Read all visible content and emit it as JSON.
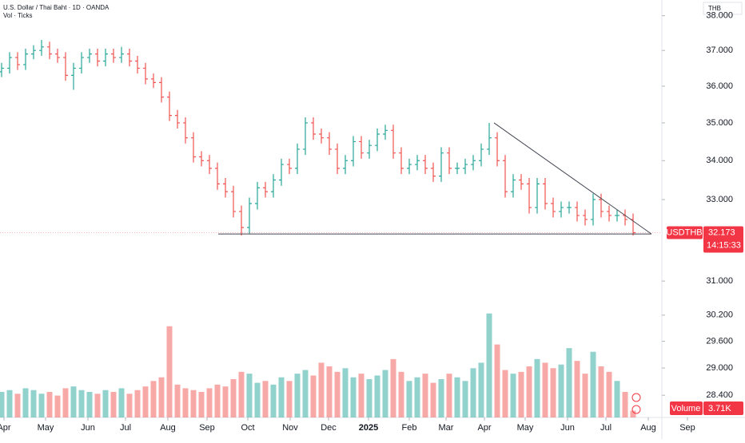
{
  "chart_data": {
    "type": "ohlc",
    "title": "U.S. Dollar / Thai Baht · 1D · OANDA",
    "subtitle": "Vol · Ticks",
    "currency": "THB",
    "log_scale": true,
    "grid": false,
    "up_color": "#26a69a",
    "down_color": "#ef5350",
    "xlim": [
      -0.2,
      82.6
    ],
    "xticks": [
      {
        "value": 0.3,
        "label": "Apr"
      },
      {
        "value": 5.5,
        "label": "May"
      },
      {
        "value": 10.8,
        "label": "Jun"
      },
      {
        "value": 15.5,
        "label": "Jul"
      },
      {
        "value": 20.8,
        "label": "Aug"
      },
      {
        "value": 25.7,
        "label": "Sep"
      },
      {
        "value": 30.8,
        "label": "Oct"
      },
      {
        "value": 36.1,
        "label": "Nov"
      },
      {
        "value": 40.9,
        "label": "Dec"
      },
      {
        "value": 45.9,
        "label": "2025"
      },
      {
        "value": 51,
        "label": "Feb"
      },
      {
        "value": 55.6,
        "label": "Mar"
      },
      {
        "value": 60.4,
        "label": "Apr"
      },
      {
        "value": 65.5,
        "label": "May"
      },
      {
        "value": 70.8,
        "label": "Jun"
      },
      {
        "value": 75.6,
        "label": "Jul"
      },
      {
        "value": 80.9,
        "label": "Aug"
      },
      {
        "value": 85.8,
        "label": "Sep"
      }
    ],
    "ylim": [
      27.92,
      38.46
    ],
    "yticks": [
      {
        "value": 38,
        "label": "38.000"
      },
      {
        "value": 37,
        "label": "37.000"
      },
      {
        "value": 36,
        "label": "36.000"
      },
      {
        "value": 35,
        "label": "35.000"
      },
      {
        "value": 34,
        "label": "34.000"
      },
      {
        "value": 33,
        "label": "33.000"
      },
      {
        "value": 31,
        "label": "31.000"
      },
      {
        "value": 30.2,
        "label": "30.200"
      },
      {
        "value": 29.6,
        "label": "29.600"
      },
      {
        "value": 29,
        "label": "29.000"
      },
      {
        "value": 28.4,
        "label": "28.400"
      }
    ],
    "bars": [
      [
        36.4,
        36.65,
        36.25,
        36.5
      ],
      [
        36.5,
        36.95,
        36.35,
        36.8
      ],
      [
        36.8,
        36.95,
        36.45,
        36.6
      ],
      [
        36.6,
        37.05,
        36.45,
        36.9
      ],
      [
        36.9,
        37.15,
        36.75,
        37.0
      ],
      [
        37.0,
        37.3,
        36.85,
        37.1
      ],
      [
        37.1,
        37.25,
        36.75,
        36.9
      ],
      [
        36.9,
        37.05,
        36.65,
        36.8
      ],
      [
        36.8,
        36.95,
        36.15,
        36.3
      ],
      [
        36.3,
        36.65,
        35.9,
        36.5
      ],
      [
        36.5,
        36.95,
        36.35,
        36.8
      ],
      [
        36.8,
        37.05,
        36.65,
        36.9
      ],
      [
        36.9,
        37.05,
        36.55,
        36.7
      ],
      [
        36.7,
        37.05,
        36.55,
        36.9
      ],
      [
        36.9,
        37.05,
        36.65,
        36.8
      ],
      [
        36.8,
        37.1,
        36.65,
        36.9
      ],
      [
        36.9,
        37.05,
        36.55,
        36.7
      ],
      [
        36.7,
        36.85,
        36.35,
        36.5
      ],
      [
        36.5,
        36.65,
        36.05,
        36.2
      ],
      [
        36.2,
        36.35,
        35.95,
        36.1
      ],
      [
        36.1,
        36.25,
        35.55,
        35.7
      ],
      [
        35.7,
        35.85,
        35.05,
        35.2
      ],
      [
        35.2,
        35.35,
        34.85,
        35.0
      ],
      [
        35.0,
        35.15,
        34.45,
        34.6
      ],
      [
        34.6,
        34.75,
        33.95,
        34.1
      ],
      [
        34.1,
        34.25,
        33.85,
        34.0
      ],
      [
        34.0,
        34.15,
        33.65,
        33.8
      ],
      [
        33.8,
        33.95,
        33.25,
        33.4
      ],
      [
        33.4,
        33.55,
        33.05,
        33.2
      ],
      [
        33.2,
        33.35,
        32.55,
        32.7
      ],
      [
        32.7,
        32.85,
        32.1,
        32.3
      ],
      [
        32.3,
        33.05,
        32.15,
        32.9
      ],
      [
        32.9,
        33.45,
        32.75,
        33.3
      ],
      [
        33.3,
        33.45,
        33.05,
        33.2
      ],
      [
        33.2,
        33.65,
        33.05,
        33.5
      ],
      [
        33.5,
        34.05,
        33.35,
        33.9
      ],
      [
        33.9,
        34.05,
        33.65,
        33.8
      ],
      [
        33.8,
        34.45,
        33.65,
        34.3
      ],
      [
        34.3,
        35.15,
        34.15,
        35.0
      ],
      [
        35.0,
        35.15,
        34.55,
        34.7
      ],
      [
        34.7,
        34.85,
        34.45,
        34.6
      ],
      [
        34.6,
        34.75,
        34.15,
        34.3
      ],
      [
        34.3,
        34.45,
        33.65,
        33.8
      ],
      [
        33.8,
        34.15,
        33.65,
        34.0
      ],
      [
        34.0,
        34.65,
        33.85,
        34.5
      ],
      [
        34.5,
        34.65,
        34.05,
        34.2
      ],
      [
        34.2,
        34.55,
        34.05,
        34.4
      ],
      [
        34.4,
        34.85,
        34.25,
        34.7
      ],
      [
        34.7,
        34.95,
        34.55,
        34.8
      ],
      [
        34.8,
        34.95,
        34.05,
        34.2
      ],
      [
        34.2,
        34.35,
        33.65,
        33.8
      ],
      [
        33.8,
        34.05,
        33.65,
        33.9
      ],
      [
        33.9,
        34.15,
        33.75,
        34.0
      ],
      [
        34.0,
        34.15,
        33.65,
        33.8
      ],
      [
        33.8,
        33.95,
        33.45,
        33.6
      ],
      [
        33.6,
        34.35,
        33.45,
        34.2
      ],
      [
        34.2,
        34.35,
        33.65,
        33.8
      ],
      [
        33.8,
        33.95,
        33.65,
        33.8
      ],
      [
        33.8,
        34.05,
        33.65,
        33.9
      ],
      [
        33.9,
        34.15,
        33.75,
        34.0
      ],
      [
        34.0,
        34.45,
        33.85,
        34.3
      ],
      [
        34.3,
        35.0,
        34.15,
        34.6
      ],
      [
        34.6,
        34.75,
        33.85,
        34.0
      ],
      [
        34.0,
        34.15,
        33.05,
        33.2
      ],
      [
        33.2,
        33.65,
        33.05,
        33.5
      ],
      [
        33.5,
        33.65,
        33.25,
        33.4
      ],
      [
        33.4,
        33.55,
        32.65,
        32.8
      ],
      [
        32.8,
        33.55,
        32.65,
        33.4
      ],
      [
        33.4,
        33.55,
        32.75,
        32.9
      ],
      [
        32.9,
        33.05,
        32.55,
        32.7
      ],
      [
        32.7,
        32.95,
        32.55,
        32.8
      ],
      [
        32.8,
        32.95,
        32.65,
        32.8
      ],
      [
        32.8,
        32.95,
        32.45,
        32.6
      ],
      [
        32.6,
        32.75,
        32.35,
        32.5
      ],
      [
        32.5,
        33.15,
        32.35,
        33.0
      ],
      [
        33.0,
        33.15,
        32.55,
        32.7
      ],
      [
        32.7,
        32.85,
        32.45,
        32.6
      ],
      [
        32.6,
        32.75,
        32.45,
        32.6
      ],
      [
        32.6,
        32.75,
        32.35,
        32.5
      ],
      [
        32.5,
        32.65,
        32.1,
        32.173
      ]
    ],
    "price": {
      "symbol": "USDTHB",
      "last": 32.173,
      "countdown": "14:15:33"
    },
    "volume": {
      "name": "Volume",
      "ylim": [
        0,
        70
      ],
      "values": [
        14,
        15,
        13,
        16,
        15,
        13,
        14,
        12,
        16,
        17,
        15,
        14,
        13,
        15,
        14,
        16,
        13,
        15,
        17,
        20,
        22,
        50,
        18,
        16,
        15,
        14,
        16,
        18,
        17,
        21,
        25,
        24,
        19,
        20,
        18,
        22,
        20,
        24,
        26,
        23,
        30,
        28,
        25,
        27,
        22,
        24,
        21,
        23,
        26,
        32,
        25,
        20,
        22,
        24,
        19,
        21,
        24,
        22,
        20,
        27,
        30,
        57,
        40,
        26,
        24,
        25,
        28,
        32,
        30,
        27,
        29,
        38,
        31,
        24,
        36,
        28,
        25,
        20,
        14,
        3.71
      ],
      "last": {
        "value": 3.71,
        "label": "3.71K"
      }
    },
    "trendlines": [
      {
        "x": [
          27.1,
          81.3
        ],
        "y": [
          32.14,
          32.14
        ]
      },
      {
        "x": [
          61.6,
          81.3
        ],
        "y": [
          35.0,
          32.14
        ]
      }
    ]
  }
}
